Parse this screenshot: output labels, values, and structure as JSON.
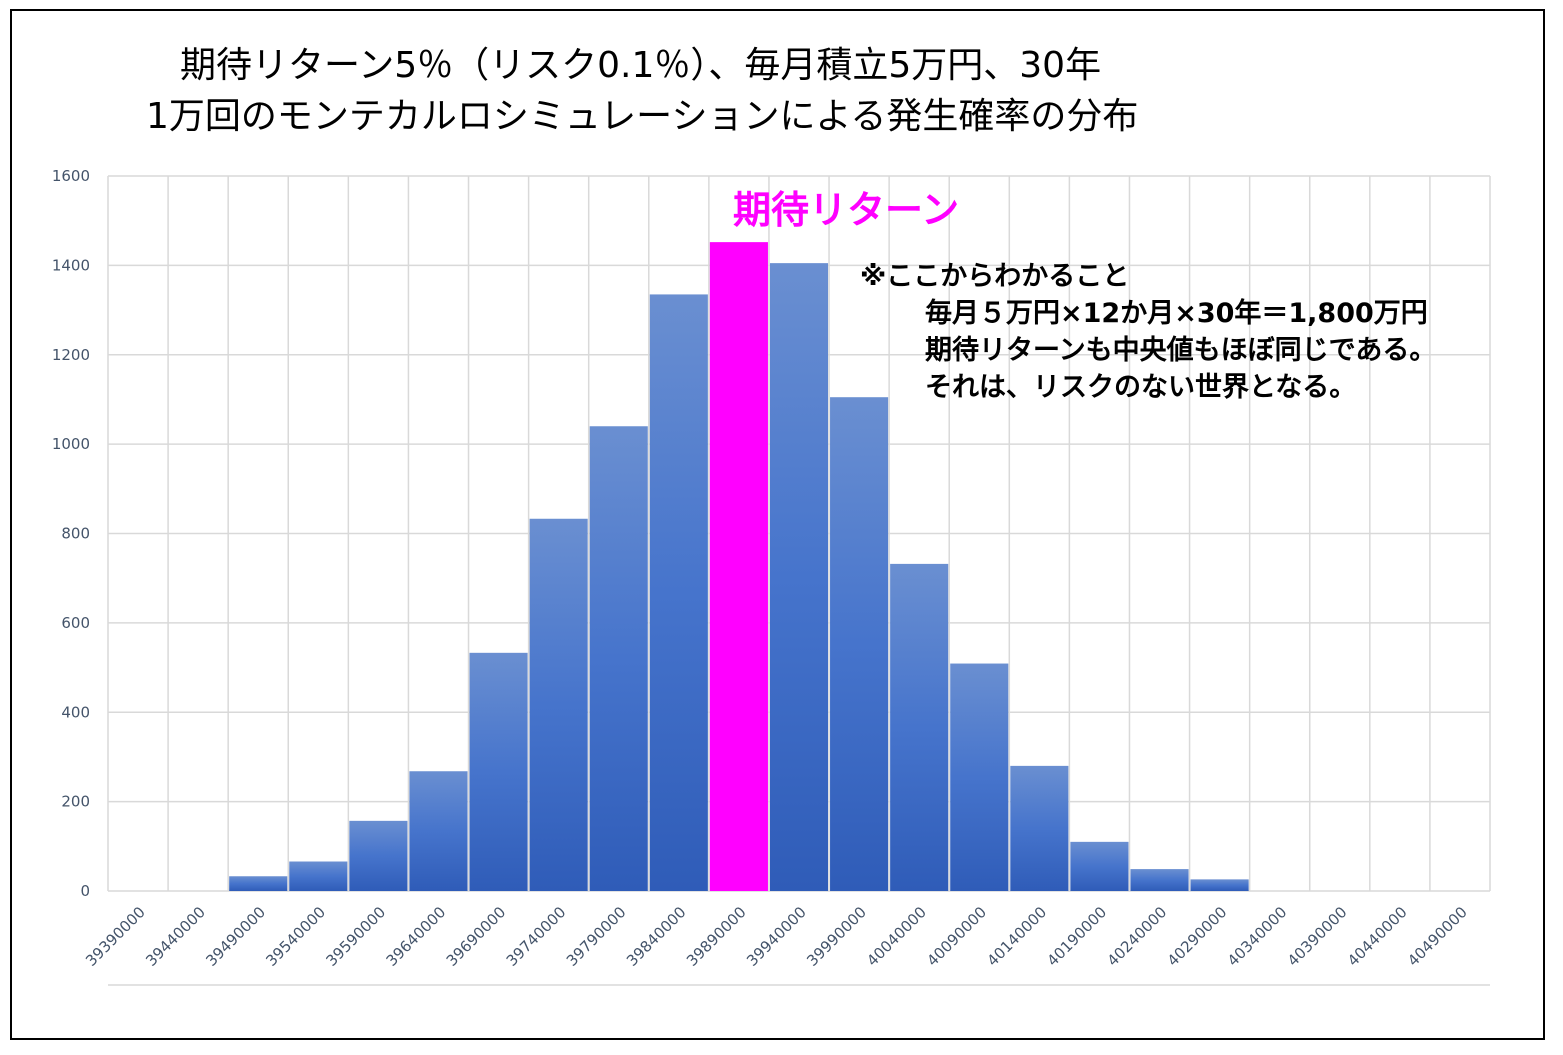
{
  "chart_data": {
    "type": "bar",
    "title": [
      "期待リターン5％（リスク0.1％）、毎月積立5万円、30年",
      "1万回のモンテカルロシミュレーションによる発生確率の分布"
    ],
    "xlabel": "",
    "ylabel": "",
    "categories": [
      "39390000",
      "39440000",
      "39490000",
      "39540000",
      "39590000",
      "39640000",
      "39690000",
      "39740000",
      "39790000",
      "39840000",
      "39890000",
      "39940000",
      "39990000",
      "40040000",
      "40090000",
      "40140000",
      "40190000",
      "40240000",
      "40290000",
      "40340000",
      "40390000",
      "40440000",
      "40490000"
    ],
    "values": [
      0,
      0,
      33,
      66,
      157,
      268,
      533,
      833,
      1040,
      1335,
      1452,
      1405,
      1105,
      732,
      509,
      280,
      110,
      49,
      26,
      0,
      0,
      0,
      0
    ],
    "ylim": [
      0,
      1600
    ],
    "yticks": [
      0,
      200,
      400,
      600,
      800,
      1000,
      1200,
      1400,
      1600
    ],
    "grid": true,
    "highlight_index": 10,
    "colors": {
      "bar": "#4472c4",
      "highlight": "#ff00ff",
      "grid": "#d9d9d9",
      "tick": "#44546a"
    },
    "callout": "期待リターン",
    "note": [
      "※ここからわかること",
      "毎月５万円×12か月×30年＝1,800万円",
      "期待リターンも中央値もほぼ同じである。",
      "それは、リスクのない世界となる。"
    ]
  }
}
